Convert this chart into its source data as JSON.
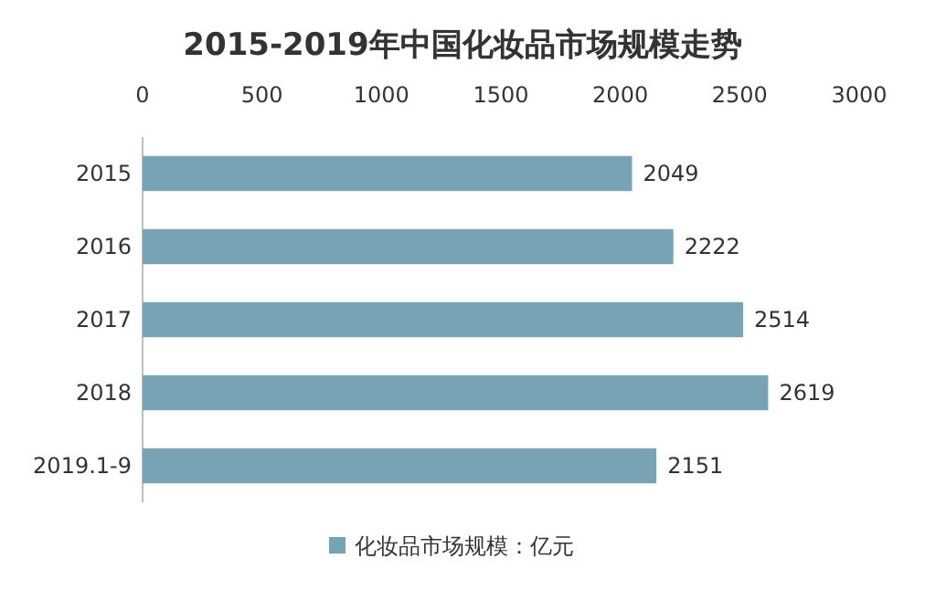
{
  "chart_data": {
    "type": "bar",
    "orientation": "horizontal",
    "title": "2015-2019年中国化妆品市场规模走势",
    "categories": [
      "2015",
      "2016",
      "2017",
      "2018",
      "2019.1-9"
    ],
    "series": [
      {
        "name": "化妆品市场规模：亿元",
        "color": "#77a3b5",
        "values": [
          2049,
          2222,
          2514,
          2619,
          2151
        ]
      }
    ],
    "xlim": [
      0,
      3000
    ],
    "xticks": [
      0,
      500,
      1000,
      1500,
      2000,
      2500,
      3000
    ],
    "data_labels": true,
    "legend": "bottom"
  }
}
